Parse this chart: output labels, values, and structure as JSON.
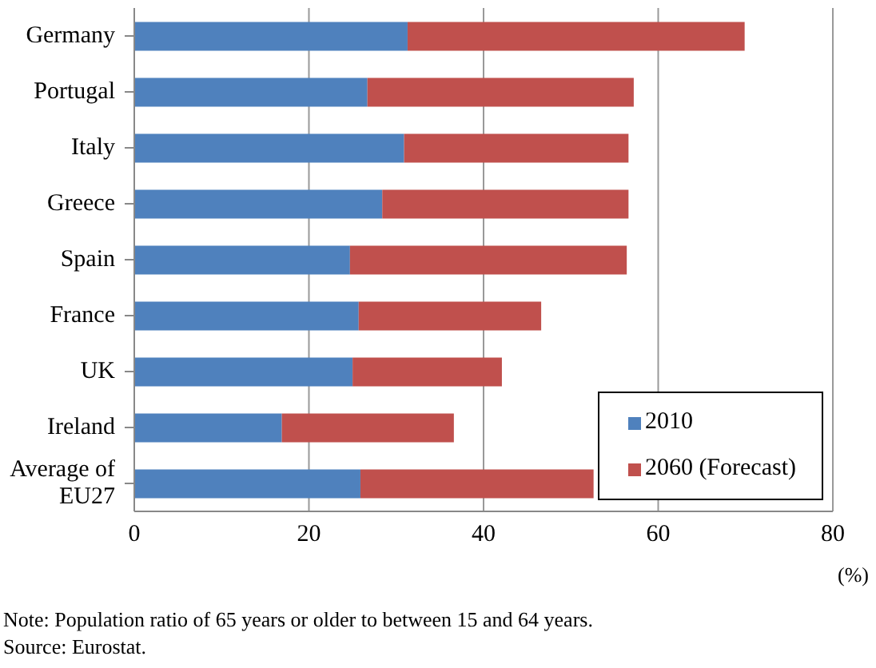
{
  "chart_data": {
    "type": "bar",
    "orientation": "horizontal",
    "stacked": true,
    "categories": [
      "Germany",
      "Portugal",
      "Italy",
      "Greece",
      "Spain",
      "France",
      "UK",
      "Ireland",
      "Average of EU27"
    ],
    "series": [
      {
        "name": "2010",
        "color": "#4f81bd",
        "values": [
          31.3,
          26.7,
          30.9,
          28.4,
          24.7,
          25.7,
          25.0,
          16.9,
          25.9
        ]
      },
      {
        "name": "2060 (Forecast)",
        "color": "#c0504d",
        "values": [
          38.6,
          30.5,
          25.7,
          28.2,
          31.7,
          20.9,
          17.1,
          19.7,
          26.7
        ]
      }
    ],
    "xlim": [
      0,
      80
    ],
    "xticks": [
      0,
      20,
      40,
      60,
      80
    ],
    "xlabel": "(%)",
    "grid": "x",
    "legend": "bottom right",
    "annotations": [
      "Note: Population ratio of 65 years or older to between 15 and 64 years.",
      "Source: Eurostat."
    ]
  }
}
